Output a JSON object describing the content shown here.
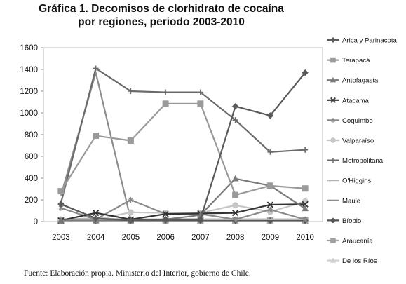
{
  "chart_data": {
    "type": "line",
    "title_lines": [
      "Gráfica 1. Decomisos de clorhidrato de cocaína",
      "por regiones, periodo 2003-2010"
    ],
    "xlabel": "",
    "ylabel": "",
    "x": [
      "2003",
      "2004",
      "2005",
      "2006",
      "2007",
      "2008",
      "2009",
      "2010"
    ],
    "ylim": [
      0,
      1600
    ],
    "yticks": [
      0,
      200,
      400,
      600,
      800,
      1000,
      1200,
      1400,
      1600
    ],
    "grid": false,
    "legend_position": "right",
    "series": [
      {
        "name": "Arica y Parinacota",
        "marker": "diamond",
        "color": "#5a5a5a",
        "width": 2.2,
        "values": [
          160,
          30,
          10,
          20,
          20,
          1060,
          975,
          1370
        ]
      },
      {
        "name": "Terapacá",
        "marker": "square",
        "color": "#9a9a9a",
        "width": 2.2,
        "values": [
          280,
          790,
          745,
          1085,
          1085,
          245,
          330,
          305
        ]
      },
      {
        "name": "Antofagasta",
        "marker": "triangle",
        "color": "#7a7a7a",
        "width": 2.2,
        "values": [
          10,
          10,
          10,
          20,
          60,
          395,
          330,
          120
        ]
      },
      {
        "name": "Atacama",
        "marker": "x",
        "color": "#333333",
        "width": 2.2,
        "values": [
          10,
          80,
          20,
          70,
          75,
          80,
          155,
          160
        ]
      },
      {
        "name": "Coquimbo",
        "marker": "asterisk",
        "color": "#8a8a8a",
        "width": 2.2,
        "values": [
          125,
          20,
          200,
          70,
          70,
          20,
          110,
          20
        ]
      },
      {
        "name": "Valparaíso",
        "marker": "circle",
        "color": "#c6c6c6",
        "width": 2.2,
        "values": [
          20,
          20,
          85,
          80,
          80,
          150,
          90,
          185
        ]
      },
      {
        "name": "Metropolitana",
        "marker": "plus",
        "color": "#6a6a6a",
        "width": 2.2,
        "values": [
          170,
          1410,
          1200,
          1190,
          1190,
          935,
          640,
          660
        ]
      },
      {
        "name": "O'Higgins",
        "marker": "none",
        "color": "#b4b4b4",
        "width": 2.2,
        "values": [
          20,
          30,
          20,
          20,
          20,
          20,
          20,
          20
        ]
      },
      {
        "name": "Maule",
        "marker": "none",
        "color": "#8c8c8c",
        "width": 2.2,
        "values": [
          240,
          1370,
          20,
          20,
          20,
          20,
          20,
          20
        ]
      },
      {
        "name": "Bíobio",
        "marker": "diamond",
        "color": "#555555",
        "width": 2.2,
        "values": [
          10,
          10,
          10,
          10,
          10,
          10,
          10,
          10
        ]
      },
      {
        "name": "Araucanía",
        "marker": "square",
        "color": "#a2a2a2",
        "width": 2.2,
        "values": [
          10,
          10,
          10,
          10,
          10,
          10,
          10,
          10
        ]
      },
      {
        "name": "De los Ríos",
        "marker": "triangle",
        "color": "#d2d2d2",
        "width": 2.2,
        "values": [
          5,
          5,
          5,
          5,
          5,
          5,
          5,
          5
        ]
      }
    ]
  },
  "source_note": "Fuente: Elaboración propia. Ministerio del Interior, gobierno de Chile."
}
